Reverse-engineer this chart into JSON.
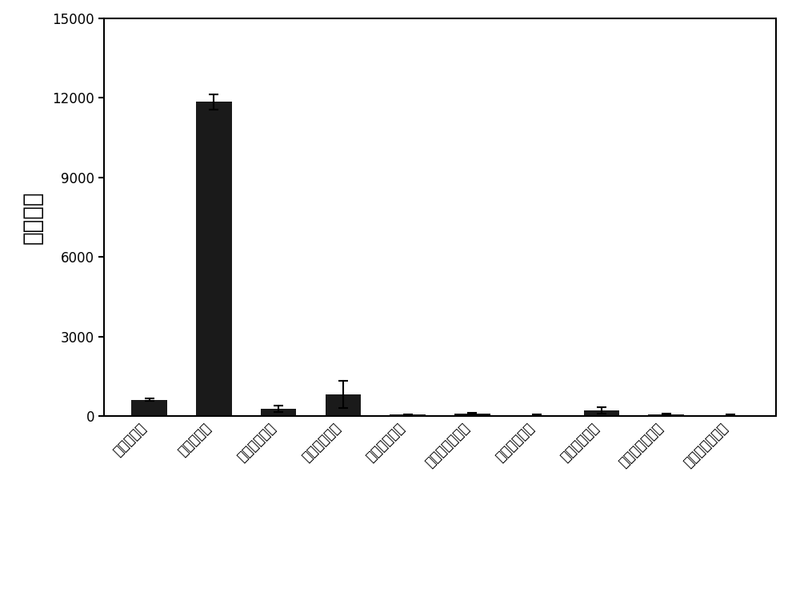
{
  "categories": [
    "罧酸酯酶１",
    "罧酸酯酶２",
    "对氧磷酯酶１",
    "对氧磷酯酶２",
    "人血清白蛋白",
    "小牛血清白蛋白",
    "乙酰胆碱酯酶",
    "丁酰胆碱酯酶",
    "血小板活化因子",
    "磷酸盐缓冲溶液"
  ],
  "values": [
    620,
    11850,
    280,
    820,
    60,
    100,
    40,
    230,
    80,
    50
  ],
  "errors": [
    50,
    280,
    120,
    500,
    20,
    30,
    15,
    120,
    20,
    15
  ],
  "bar_color": "#1a1a1a",
  "ylabel": "荧光强度",
  "ylim": [
    0,
    15000
  ],
  "yticks": [
    0,
    3000,
    6000,
    9000,
    12000,
    15000
  ],
  "background_color": "#ffffff",
  "ylabel_fontsize": 20,
  "tick_fontsize": 12,
  "bar_width": 0.55
}
